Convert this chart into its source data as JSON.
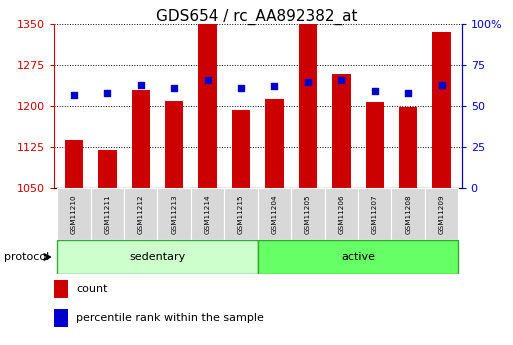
{
  "title": "GDS654 / rc_AA892382_at",
  "samples": [
    "GSM11210",
    "GSM11211",
    "GSM11212",
    "GSM11213",
    "GSM11214",
    "GSM11215",
    "GSM11204",
    "GSM11205",
    "GSM11206",
    "GSM11207",
    "GSM11208",
    "GSM11209"
  ],
  "groups": [
    "sedentary",
    "sedentary",
    "sedentary",
    "sedentary",
    "sedentary",
    "sedentary",
    "active",
    "active",
    "active",
    "active",
    "active",
    "active"
  ],
  "counts": [
    1138,
    1120,
    1230,
    1210,
    1350,
    1193,
    1213,
    1350,
    1258,
    1207,
    1198,
    1335
  ],
  "percentile_ranks": [
    57,
    58,
    63,
    61,
    66,
    61,
    62,
    65,
    66,
    59,
    58,
    63
  ],
  "ylim_left": [
    1050,
    1350
  ],
  "ylim_right": [
    0,
    100
  ],
  "yticks_left": [
    1050,
    1125,
    1200,
    1275,
    1350
  ],
  "yticks_right": [
    0,
    25,
    50,
    75,
    100
  ],
  "bar_color": "#cc0000",
  "dot_color": "#0000cc",
  "group_colors": {
    "sedentary": "#ccffcc",
    "active": "#66ff66"
  },
  "group_border_color": "#33aa33",
  "protocol_label": "protocol",
  "legend_count": "count",
  "legend_pct": "percentile rank within the sample",
  "tick_label_color_left": "#cc0000",
  "tick_label_color_right": "#0000cc",
  "title_fontsize": 11,
  "axis_fontsize": 8,
  "bar_width": 0.55,
  "xlabels_bg": "#d8d8d8",
  "xlabels_fg": "#000000"
}
